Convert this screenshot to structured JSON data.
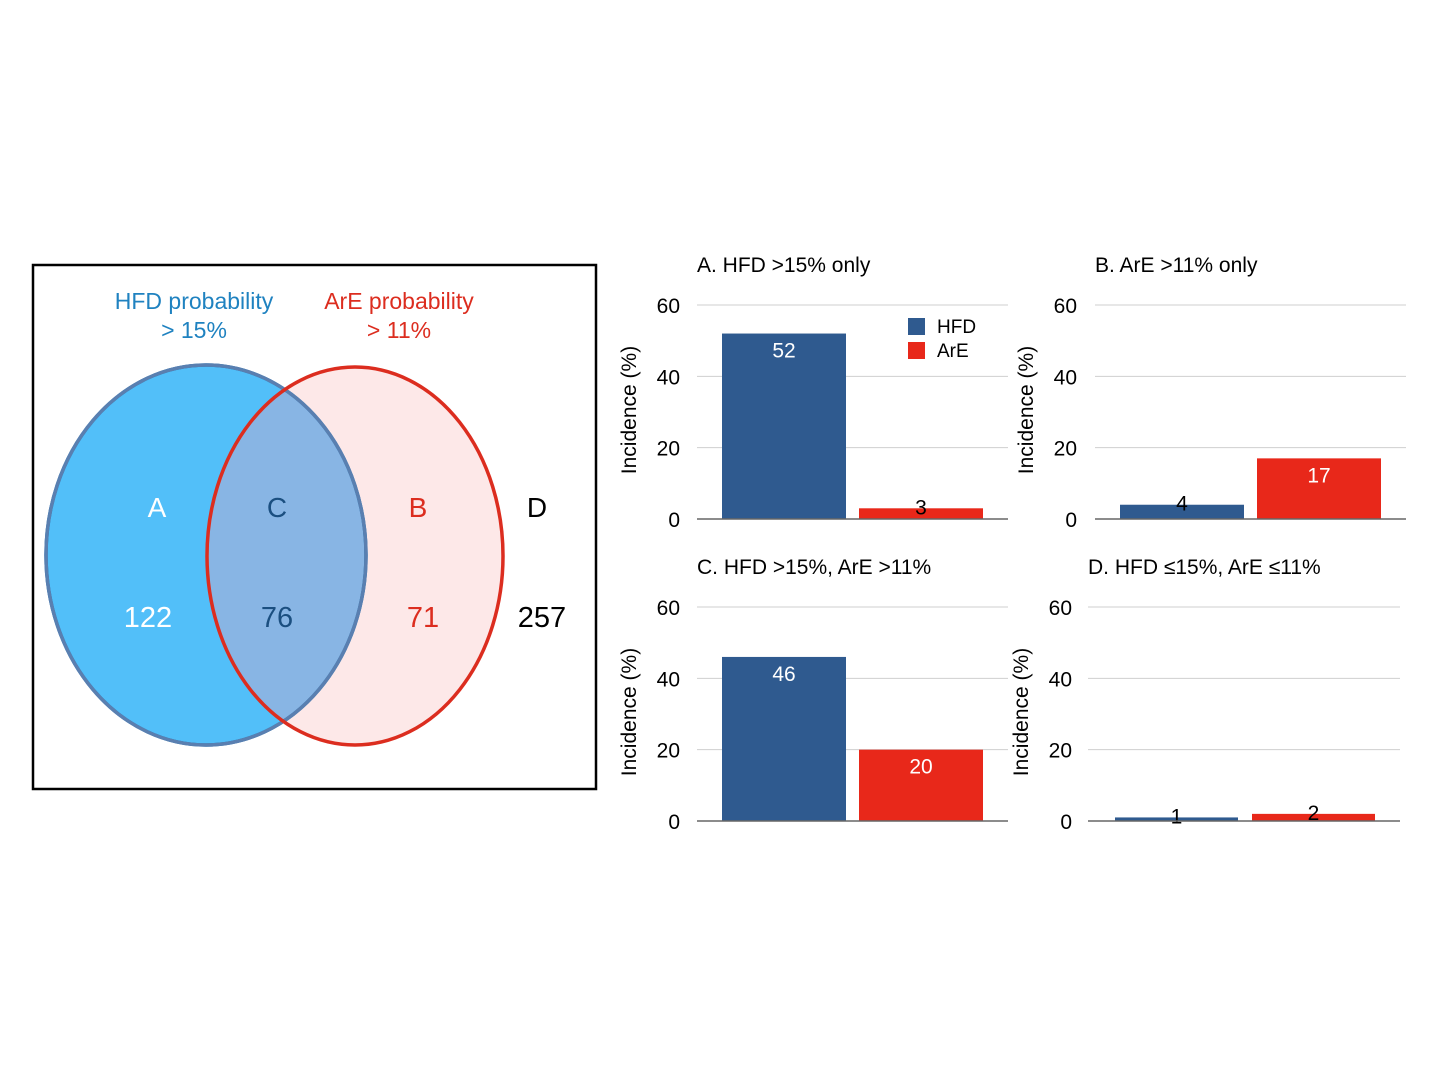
{
  "venn": {
    "sets": [
      {
        "label_line1": "HFD probability",
        "label_line2": "> 15%",
        "color": "#1f82c0",
        "fill": "#52bff9"
      },
      {
        "label_line1": "ArE probability",
        "label_line2": "> 11%",
        "color": "#dc2d1f",
        "fill": "#fde8e8"
      }
    ],
    "intersection_fill": "#88b5e4",
    "regions": [
      {
        "letter": "A",
        "count": "122",
        "color": "#ffffff"
      },
      {
        "letter": "C",
        "count": "76",
        "color": "#1b4f80"
      },
      {
        "letter": "B",
        "count": "71",
        "color": "#dc2d1f"
      },
      {
        "letter": "D",
        "count": "257",
        "color": "#000000"
      }
    ]
  },
  "legend": {
    "items": [
      {
        "name": "HFD",
        "color": "#2f5a8f"
      },
      {
        "name": "ArE",
        "color": "#e8281a"
      }
    ],
    "placement": "top-right of chart A"
  },
  "chart_data": [
    {
      "type": "bar",
      "title": "A. HFD >15% only",
      "ylabel": "Incidence (%)",
      "ylim": [
        0,
        60
      ],
      "yticks": [
        0,
        20,
        40,
        60
      ],
      "grid": true,
      "categories": [
        "HFD",
        "ArE"
      ],
      "values": [
        52,
        3
      ],
      "colors": [
        "#2f5a8f",
        "#e8281a"
      ]
    },
    {
      "type": "bar",
      "title": "B. ArE >11% only",
      "ylabel": "Incidence (%)",
      "ylim": [
        0,
        60
      ],
      "yticks": [
        0,
        20,
        40,
        60
      ],
      "grid": true,
      "categories": [
        "HFD",
        "ArE"
      ],
      "values": [
        4,
        17
      ],
      "colors": [
        "#2f5a8f",
        "#e8281a"
      ]
    },
    {
      "type": "bar",
      "title": "C. HFD >15%, ArE >11%",
      "ylabel": "Incidence (%)",
      "ylim": [
        0,
        60
      ],
      "yticks": [
        0,
        20,
        40,
        60
      ],
      "grid": true,
      "categories": [
        "HFD",
        "ArE"
      ],
      "values": [
        46,
        20
      ],
      "colors": [
        "#2f5a8f",
        "#e8281a"
      ]
    },
    {
      "type": "bar",
      "title": "D. HFD ≤15%, ArE ≤11%",
      "ylabel": "Incidence (%)",
      "ylim": [
        0,
        60
      ],
      "yticks": [
        0,
        20,
        40,
        60
      ],
      "grid": true,
      "categories": [
        "HFD",
        "ArE"
      ],
      "values": [
        1,
        2
      ],
      "colors": [
        "#2f5a8f",
        "#e8281a"
      ]
    }
  ]
}
